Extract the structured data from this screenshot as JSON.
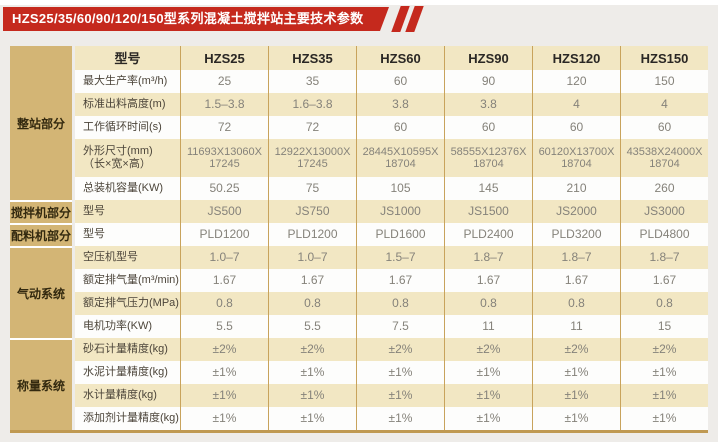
{
  "banner": {
    "title": "HZS25/35/60/90/120/150型系列混凝土搅拌站主要技术参数"
  },
  "colors": {
    "banner_red": "#c5291d",
    "section_tan": "#d3b575",
    "stripe_cream": "#f2e7c3",
    "divider_gold": "#c8a35c",
    "bottom_border_brown": "#bf9952",
    "page_background": "#eeece9"
  },
  "table": {
    "model_header_label": "型号",
    "models": [
      "HZS25",
      "HZS35",
      "HZS60",
      "HZS90",
      "HZS120",
      "HZS150"
    ],
    "sections": [
      {
        "label": "整站部分",
        "row_count": 5,
        "include_header": true
      },
      {
        "label": "搅拌机部分",
        "row_count": 1,
        "include_header": false
      },
      {
        "label": "配料机部分",
        "row_count": 1,
        "include_header": false
      },
      {
        "label": "气动系统",
        "row_count": 4,
        "include_header": false
      },
      {
        "label": "称量系统",
        "row_count": 4,
        "include_header": false
      }
    ],
    "rows": [
      {
        "label": "最大生产率(m³/h)",
        "tall": false,
        "values": [
          "25",
          "35",
          "60",
          "90",
          "120",
          "150"
        ]
      },
      {
        "label": "标准出料高度(m)",
        "tall": false,
        "values": [
          "1.5–3.8",
          "1.6–3.8",
          "3.8",
          "3.8",
          "4",
          "4"
        ]
      },
      {
        "label": "工作循环时间(s)",
        "tall": false,
        "values": [
          "72",
          "72",
          "60",
          "60",
          "60",
          "60"
        ]
      },
      {
        "label": "外形尺寸(mm)\n（长×宽×高）",
        "tall": true,
        "values": [
          "11693X13060X\n17245",
          "12922X13000X\n17245",
          "28445X10595X\n18704",
          "58555X12376X\n18704",
          "60120X13700X\n18704",
          "43538X24000X\n18704"
        ]
      },
      {
        "label": "总装机容量(KW)",
        "tall": false,
        "values": [
          "50.25",
          "75",
          "105",
          "145",
          "210",
          "260"
        ]
      },
      {
        "label": "型号",
        "tall": false,
        "values": [
          "JS500",
          "JS750",
          "JS1000",
          "JS1500",
          "JS2000",
          "JS3000"
        ]
      },
      {
        "label": "型号",
        "tall": false,
        "values": [
          "PLD1200",
          "PLD1200",
          "PLD1600",
          "PLD2400",
          "PLD3200",
          "PLD4800"
        ]
      },
      {
        "label": "空压机型号",
        "tall": false,
        "values": [
          "1.0–7",
          "1.0–7",
          "1.5–7",
          "1.8–7",
          "1.8–7",
          "1.8–7"
        ]
      },
      {
        "label": "额定排气量(m³/min)",
        "tall": false,
        "values": [
          "1.67",
          "1.67",
          "1.67",
          "1.67",
          "1.67",
          "1.67"
        ]
      },
      {
        "label": "额定排气压力(MPa)",
        "tall": false,
        "values": [
          "0.8",
          "0.8",
          "0.8",
          "0.8",
          "0.8",
          "0.8"
        ]
      },
      {
        "label": "电机功率(KW)",
        "tall": false,
        "values": [
          "5.5",
          "5.5",
          "7.5",
          "11",
          "11",
          "15"
        ]
      },
      {
        "label": "砂石计量精度(kg)",
        "tall": false,
        "values": [
          "±2%",
          "±2%",
          "±2%",
          "±2%",
          "±2%",
          "±2%"
        ]
      },
      {
        "label": "水泥计量精度(kg)",
        "tall": false,
        "values": [
          "±1%",
          "±1%",
          "±1%",
          "±1%",
          "±1%",
          "±1%"
        ]
      },
      {
        "label": "水计量精度(kg)",
        "tall": false,
        "values": [
          "±1%",
          "±1%",
          "±1%",
          "±1%",
          "±1%",
          "±1%"
        ]
      },
      {
        "label": "添加剂计量精度(kg)",
        "tall": false,
        "values": [
          "±1%",
          "±1%",
          "±1%",
          "±1%",
          "±1%",
          "±1%"
        ]
      }
    ]
  }
}
